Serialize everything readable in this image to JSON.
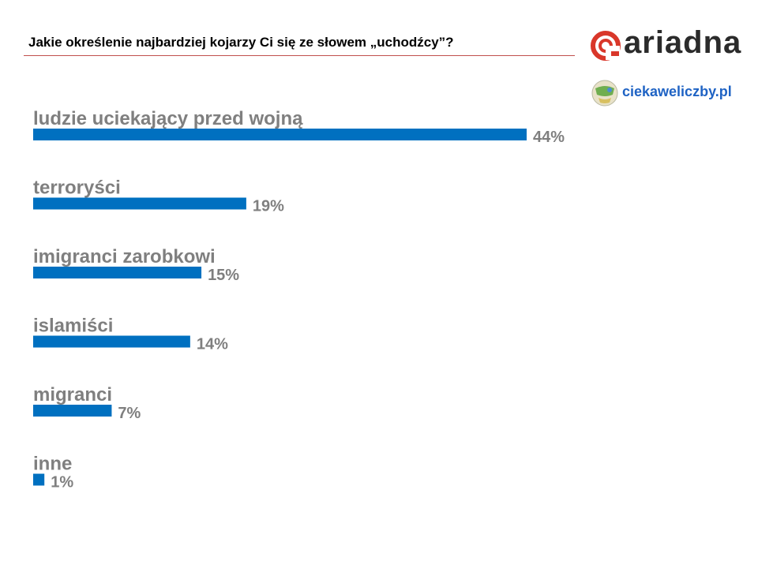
{
  "header": {
    "title": "Jakie określenie najbardziej kojarzy Ci się ze słowem „uchodźcy”?"
  },
  "logos": {
    "ariadna": "ariadna",
    "ciekawe_liczby": "ciekaweliczby.pl"
  },
  "colors": {
    "bar": "#0070c0",
    "label": "#7f7f7f",
    "title_rule": "#c0504d",
    "ariadna_red": "#d9372a",
    "ariadna_text": "#2b2b2b",
    "cz_blue": "#1f63c4"
  },
  "chart_data": {
    "type": "bar",
    "orientation": "horizontal",
    "title": "Jakie określenie najbardziej kojarzy Ci się ze słowem „uchodźcy”?",
    "categories": [
      "ludzie uciekający przed wojną",
      "terroryści",
      "imigranci zarobkowi",
      "islamiści",
      "migranci",
      "inne"
    ],
    "values": [
      44,
      19,
      15,
      14,
      7,
      1
    ],
    "value_labels": [
      "44%",
      "19%",
      "15%",
      "14%",
      "7%",
      "1%"
    ],
    "unit": "%",
    "xlim": [
      0,
      44
    ],
    "grid": false,
    "legend": "none"
  }
}
